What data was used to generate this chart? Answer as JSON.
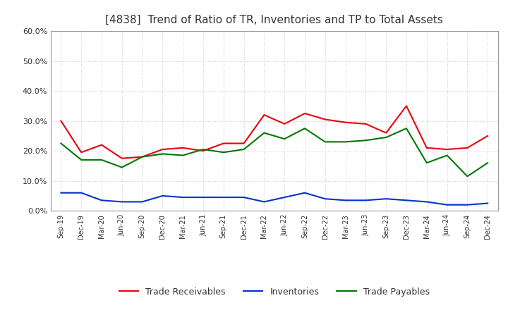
{
  "title": "[4838]  Trend of Ratio of TR, Inventories and TP to Total Assets",
  "x_labels": [
    "Sep-19",
    "Dec-19",
    "Mar-20",
    "Jun-20",
    "Sep-20",
    "Dec-20",
    "Mar-21",
    "Jun-21",
    "Sep-21",
    "Dec-21",
    "Mar-22",
    "Jun-22",
    "Sep-22",
    "Dec-22",
    "Mar-23",
    "Jun-23",
    "Sep-23",
    "Dec-23",
    "Mar-24",
    "Jun-24",
    "Sep-24",
    "Dec-24"
  ],
  "trade_receivables": [
    30.0,
    19.5,
    22.0,
    17.5,
    18.0,
    20.5,
    21.0,
    20.0,
    22.5,
    22.5,
    32.0,
    29.0,
    32.5,
    30.5,
    29.5,
    29.0,
    26.0,
    35.0,
    21.0,
    20.5,
    21.0,
    25.0
  ],
  "inventories": [
    6.0,
    6.0,
    3.5,
    3.0,
    3.0,
    5.0,
    4.5,
    4.5,
    4.5,
    4.5,
    3.0,
    4.5,
    6.0,
    4.0,
    3.5,
    3.5,
    4.0,
    3.5,
    3.0,
    2.0,
    2.0,
    2.5
  ],
  "trade_payables": [
    22.5,
    17.0,
    17.0,
    14.5,
    18.0,
    19.0,
    18.5,
    20.5,
    19.5,
    20.5,
    26.0,
    24.0,
    27.5,
    23.0,
    23.0,
    23.5,
    24.5,
    27.5,
    16.0,
    18.5,
    11.5,
    16.0
  ],
  "ylim": [
    0,
    60
  ],
  "yticks": [
    0,
    10,
    20,
    30,
    40,
    50,
    60
  ],
  "line_color_tr": "#e8000d",
  "line_color_inv": "#0033cc",
  "line_color_tp": "#007700",
  "background_color": "#ffffff",
  "grid_color": "#bbbbbb",
  "title_color": "#333333",
  "legend_labels": [
    "Trade Receivables",
    "Inventories",
    "Trade Payables"
  ]
}
